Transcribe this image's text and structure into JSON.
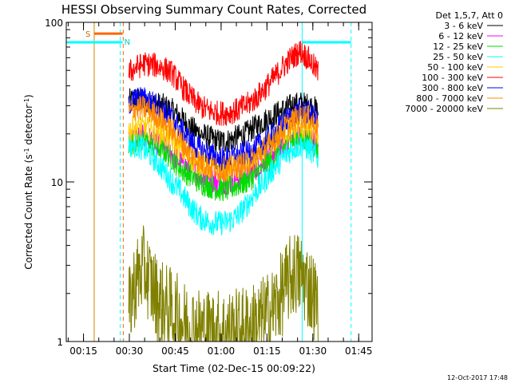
{
  "chart_data": {
    "type": "line",
    "title": "HESSI Observing Summary Count Rates, Corrected",
    "xlabel": "Start Time (02-Dec-15 00:09:22)",
    "ylabel_main": "Corrected Count Rate (s",
    "ylabel_sup1": "-1",
    "ylabel_mid": " detector",
    "ylabel_sup2": "-1",
    "ylabel_end": ")",
    "y_scale": "log",
    "ylim": [
      1,
      100
    ],
    "y_ticks": [
      {
        "value": 1,
        "label": "1"
      },
      {
        "value": 10,
        "label": "10"
      },
      {
        "value": 100,
        "label": "100"
      }
    ],
    "x_unit": "minutes after 00:00 UT",
    "xlim": [
      9.37,
      109.37
    ],
    "x_ticks": [
      {
        "value": 15,
        "label": "00:15"
      },
      {
        "value": 30,
        "label": "00:30"
      },
      {
        "value": 45,
        "label": "00:45"
      },
      {
        "value": 60,
        "label": "01:00"
      },
      {
        "value": 75,
        "label": "01:15"
      },
      {
        "value": 90,
        "label": "01:30"
      },
      {
        "value": 105,
        "label": "01:45"
      }
    ],
    "legend_header": "Det 1,5,7, Att 0",
    "legend_position": "right",
    "timestamp": "12-Oct-2017 17:48",
    "series": [
      {
        "name": "3 - 6 keV",
        "color": "#000000",
        "x": [
          29.8,
          32,
          35,
          38,
          41,
          44,
          47,
          50,
          53,
          56,
          59,
          62,
          65,
          68,
          71,
          74,
          77,
          80,
          83,
          86,
          89,
          91.8
        ],
        "y": [
          32,
          33,
          32,
          31,
          30,
          28,
          25,
          22,
          20,
          19,
          18,
          18,
          19,
          20,
          22,
          24,
          26,
          28,
          30,
          31,
          30,
          28
        ]
      },
      {
        "name": "6 - 12 keV",
        "color": "#ff00ff",
        "x": [
          29.8,
          32,
          35,
          38,
          41,
          44,
          47,
          50,
          53,
          56,
          59,
          62,
          65,
          68,
          71,
          74,
          77,
          80,
          83,
          86,
          89,
          91.8
        ],
        "y": [
          18,
          19,
          19,
          18,
          17,
          15,
          13,
          12,
          11,
          10.5,
          10,
          10,
          10.5,
          11,
          12,
          13.5,
          15,
          17,
          18.5,
          19.5,
          19,
          17
        ]
      },
      {
        "name": "12 - 25 keV",
        "color": "#00dd00",
        "x": [
          29.8,
          32,
          35,
          38,
          41,
          44,
          47,
          50,
          53,
          56,
          59,
          62,
          65,
          68,
          71,
          74,
          77,
          80,
          83,
          86,
          89,
          91.8
        ],
        "y": [
          17,
          18,
          18,
          17,
          16,
          14,
          12,
          11,
          10,
          9.5,
          9,
          9,
          9.5,
          10,
          11,
          12.5,
          14,
          16,
          18,
          19,
          18,
          16
        ]
      },
      {
        "name": "25 - 50 keV",
        "color": "#00ffff",
        "x": [
          29.8,
          32,
          35,
          38,
          41,
          44,
          47,
          50,
          53,
          56,
          59,
          62,
          65,
          68,
          71,
          74,
          77,
          80,
          83,
          86,
          89,
          91.8
        ],
        "y": [
          17,
          17,
          16,
          14,
          12,
          10,
          8.5,
          7,
          6,
          5.6,
          5.5,
          5.6,
          6,
          7,
          8.5,
          10,
          12,
          14,
          16,
          17,
          16,
          14
        ]
      },
      {
        "name": "50 - 100 keV",
        "color": "#ffcc00",
        "x": [
          29.8,
          32,
          35,
          38,
          41,
          44,
          47,
          50,
          53,
          56,
          59,
          62,
          65,
          68,
          71,
          74,
          77,
          80,
          83,
          86,
          89,
          91.8
        ],
        "y": [
          21,
          22,
          22,
          21,
          20,
          18,
          16,
          14,
          13,
          12.5,
          12,
          12,
          12.5,
          13,
          14,
          16,
          18,
          20,
          21,
          22,
          21,
          20
        ]
      },
      {
        "name": "100 - 300 keV",
        "color": "#ff0000",
        "x": [
          29.8,
          32,
          35,
          38,
          41,
          44,
          47,
          50,
          53,
          56,
          59,
          62,
          65,
          68,
          71,
          74,
          77,
          80,
          83,
          86,
          89,
          91.8
        ],
        "y": [
          48,
          52,
          55,
          54,
          52,
          48,
          40,
          34,
          30,
          28,
          27,
          27,
          28,
          30,
          33,
          38,
          44,
          52,
          60,
          66,
          58,
          48
        ]
      },
      {
        "name": "300 - 800 keV",
        "color": "#0000ff",
        "x": [
          29.8,
          32,
          35,
          38,
          41,
          44,
          47,
          50,
          53,
          56,
          59,
          62,
          65,
          68,
          71,
          74,
          77,
          80,
          83,
          86,
          89,
          91.8
        ],
        "y": [
          31,
          33,
          33,
          31,
          28,
          25,
          21,
          18,
          16,
          15,
          14,
          14,
          14.5,
          15,
          16,
          18,
          20,
          23,
          26,
          28,
          27,
          24
        ]
      },
      {
        "name": "800 - 7000 keV",
        "color": "#ff8800",
        "x": [
          29.8,
          32,
          35,
          38,
          41,
          44,
          47,
          50,
          53,
          56,
          59,
          62,
          65,
          68,
          71,
          74,
          77,
          80,
          83,
          86,
          89,
          91.8
        ],
        "y": [
          27,
          29,
          29,
          27,
          24,
          21,
          18,
          15,
          13.5,
          12.5,
          12,
          12,
          12.5,
          13,
          14,
          16,
          18,
          21,
          24,
          26,
          25,
          22
        ]
      },
      {
        "name": "7000 - 20000 keV",
        "color": "#808000",
        "x": [
          29.8,
          31,
          33,
          35,
          37,
          39,
          41,
          43,
          44.5,
          48,
          52,
          56,
          60,
          64,
          68,
          72,
          76,
          78,
          80,
          82,
          84,
          86,
          88,
          90,
          91.8
        ],
        "y": [
          1.5,
          2.1,
          2.6,
          2.9,
          2.3,
          1.9,
          1.7,
          1.6,
          1.5,
          1.3,
          1.2,
          1.15,
          1.15,
          1.15,
          1.2,
          1.3,
          1.5,
          1.7,
          2.0,
          2.4,
          2.7,
          2.6,
          2.3,
          2.0,
          1.6
        ]
      }
    ],
    "annotations": {
      "orbit_bars": [
        {
          "x_start": 9.37,
          "x_end": 27.8,
          "y": 75
        },
        {
          "x_start": 86.5,
          "x_end": 102.5,
          "y": 75
        }
      ],
      "saa_bar": {
        "x_start": 18.5,
        "x_end": 27.8,
        "y": 85,
        "label": "S"
      },
      "night_label": "N",
      "vlines": [
        {
          "x": 18.5,
          "color": "#cc8800",
          "style": "solid"
        },
        {
          "x": 27.0,
          "color": "#00ffff",
          "style": "dashed"
        },
        {
          "x": 28.0,
          "color": "#ff6600",
          "style": "dashed"
        },
        {
          "x": 86.5,
          "color": "#00ffff",
          "style": "solid"
        },
        {
          "x": 102.5,
          "color": "#00ffff",
          "style": "dashed"
        }
      ]
    }
  }
}
